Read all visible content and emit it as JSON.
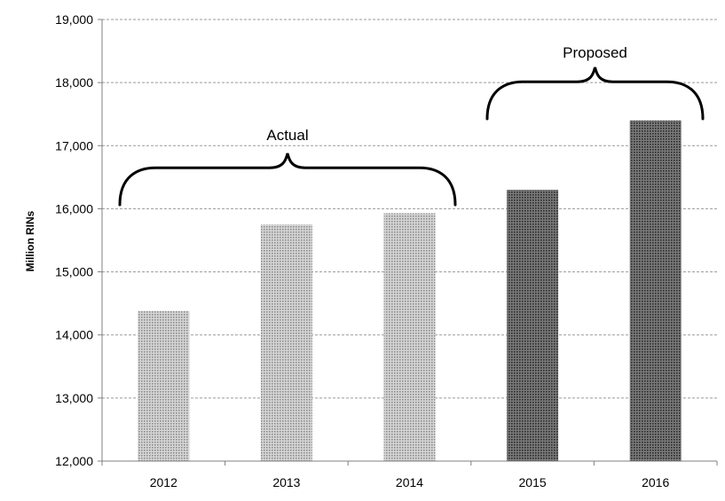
{
  "chart_data": {
    "type": "bar",
    "title": "",
    "xlabel": "",
    "ylabel": "Million RINs",
    "categories": [
      "2012",
      "2013",
      "2014",
      "2015",
      "2016"
    ],
    "values": [
      14380,
      15750,
      15930,
      16300,
      17400
    ],
    "ylim": [
      12000,
      19000
    ],
    "y_ticks": [
      12000,
      13000,
      14000,
      15000,
      16000,
      17000,
      18000,
      19000
    ],
    "y_tick_labels": [
      "12,000",
      "13,000",
      "14,000",
      "15,000",
      "16,000",
      "17,000",
      "18,000",
      "19,000"
    ],
    "grid": true,
    "bar_styles": [
      "light-pattern",
      "light-pattern",
      "light-pattern",
      "dark-pattern",
      "dark-pattern"
    ],
    "colors": {
      "light_pattern": "#b0b0b0",
      "dark_pattern": "#4d4d4d",
      "gridline": "#9a9a9a",
      "axis": "#808080"
    },
    "annotations": [
      {
        "text": "Actual",
        "categories": [
          "2012",
          "2013",
          "2014"
        ]
      },
      {
        "text": "Proposed",
        "categories": [
          "2015",
          "2016"
        ]
      }
    ]
  }
}
